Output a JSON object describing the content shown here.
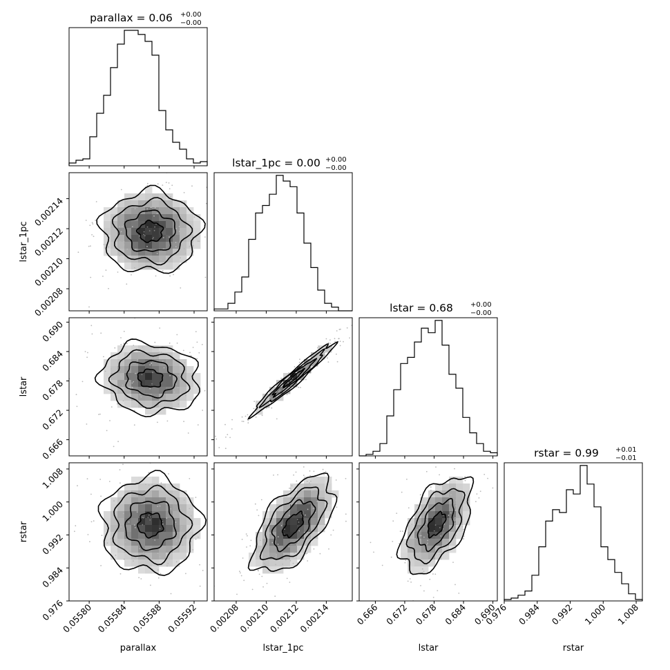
{
  "figure": {
    "labels": [
      "parallax",
      "lstar_1pc",
      "lstar",
      "rstar"
    ],
    "titles": [
      {
        "param": "parallax",
        "value": "0.06",
        "upper": "+0.00",
        "lower": "−0.00"
      },
      {
        "param": "lstar_1pc",
        "value": "0.00",
        "upper": "+0.00",
        "lower": "−0.00"
      },
      {
        "param": "lstar",
        "value": "0.68",
        "upper": "+0.00",
        "lower": "−0.00"
      },
      {
        "param": "rstar",
        "value": "0.99",
        "upper": "+0.01",
        "lower": "−0.01"
      }
    ],
    "ticks": [
      [
        "0.05580",
        "0.05584",
        "0.05588",
        "0.05592"
      ],
      [
        "0.00208",
        "0.00210",
        "0.00212",
        "0.00214"
      ],
      [
        "0.666",
        "0.672",
        "0.678",
        "0.684",
        "0.690"
      ],
      [
        "0.976",
        "0.984",
        "0.992",
        "1.000",
        "1.008"
      ]
    ]
  },
  "chart_data": {
    "type": "corner",
    "parameters": [
      "parallax",
      "lstar_1pc",
      "lstar",
      "rstar"
    ],
    "ranges": [
      [
        0.055777,
        0.055935
      ],
      [
        0.0020653,
        0.0021573
      ],
      [
        0.6627,
        0.6909
      ],
      [
        0.976,
        1.0095
      ]
    ],
    "tick_values": [
      [
        0.0558,
        0.05584,
        0.05588,
        0.05592
      ],
      [
        0.00208,
        0.0021,
        0.00212,
        0.00214
      ],
      [
        0.666,
        0.672,
        0.678,
        0.684,
        0.69
      ],
      [
        0.976,
        0.984,
        0.992,
        1.0,
        1.008
      ]
    ],
    "medians": [
      0.05587,
      0.002118,
      0.6785,
      0.9945
    ],
    "sigmas": [
      2.8e-05,
      1.35e-05,
      0.0036,
      0.0058
    ],
    "correlations": [
      [
        1,
        0,
        -0.1,
        0
      ],
      [
        0,
        1,
        0.97,
        0.6
      ],
      [
        -0.1,
        0.97,
        1,
        0.55
      ],
      [
        0,
        0.6,
        0.55,
        1
      ]
    ],
    "histograms": [
      [
        2,
        4,
        5,
        21,
        38,
        51,
        71,
        88,
        98,
        98,
        95,
        90,
        80,
        40,
        26,
        17,
        12,
        5,
        2,
        3
      ],
      [
        1,
        1,
        4,
        10,
        18,
        38,
        52,
        56,
        62,
        72,
        69,
        66,
        52,
        36,
        23,
        11,
        4,
        2,
        0,
        0
      ],
      [
        0,
        1,
        3,
        8,
        26,
        43,
        60,
        64,
        74,
        83,
        80,
        88,
        72,
        53,
        44,
        25,
        15,
        8,
        3,
        2
      ],
      [
        1,
        2,
        4,
        7,
        18,
        38,
        56,
        64,
        62,
        78,
        75,
        95,
        82,
        66,
        38,
        29,
        20,
        12,
        5,
        1
      ]
    ]
  }
}
